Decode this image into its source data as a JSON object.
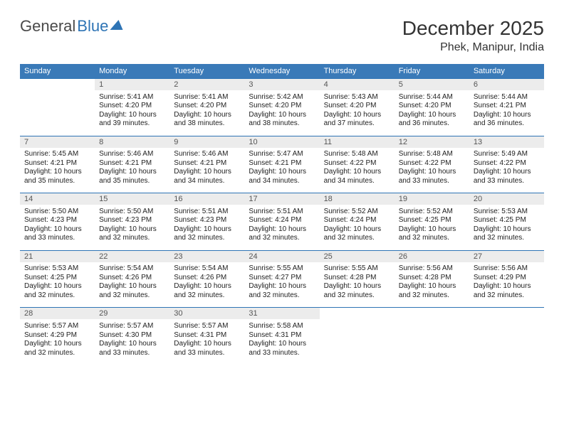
{
  "logo": {
    "text1": "General",
    "text2": "Blue"
  },
  "title": "December 2025",
  "location": "Phek, Manipur, India",
  "colors": {
    "header_bg": "#3a7ab8",
    "daynum_bg": "#ececec",
    "rule": "#2e74b5",
    "text": "#222222",
    "logo_gray": "#4a4a4a"
  },
  "fonts": {
    "title_pt": 28,
    "location_pt": 16,
    "dow_pt": 11,
    "cell_pt": 10
  },
  "daysOfWeek": [
    "Sunday",
    "Monday",
    "Tuesday",
    "Wednesday",
    "Thursday",
    "Friday",
    "Saturday"
  ],
  "weeks": [
    [
      null,
      {
        "n": "1",
        "sr": "5:41 AM",
        "ss": "4:20 PM",
        "dl": "10 hours and 39 minutes."
      },
      {
        "n": "2",
        "sr": "5:41 AM",
        "ss": "4:20 PM",
        "dl": "10 hours and 38 minutes."
      },
      {
        "n": "3",
        "sr": "5:42 AM",
        "ss": "4:20 PM",
        "dl": "10 hours and 38 minutes."
      },
      {
        "n": "4",
        "sr": "5:43 AM",
        "ss": "4:20 PM",
        "dl": "10 hours and 37 minutes."
      },
      {
        "n": "5",
        "sr": "5:44 AM",
        "ss": "4:20 PM",
        "dl": "10 hours and 36 minutes."
      },
      {
        "n": "6",
        "sr": "5:44 AM",
        "ss": "4:21 PM",
        "dl": "10 hours and 36 minutes."
      }
    ],
    [
      {
        "n": "7",
        "sr": "5:45 AM",
        "ss": "4:21 PM",
        "dl": "10 hours and 35 minutes."
      },
      {
        "n": "8",
        "sr": "5:46 AM",
        "ss": "4:21 PM",
        "dl": "10 hours and 35 minutes."
      },
      {
        "n": "9",
        "sr": "5:46 AM",
        "ss": "4:21 PM",
        "dl": "10 hours and 34 minutes."
      },
      {
        "n": "10",
        "sr": "5:47 AM",
        "ss": "4:21 PM",
        "dl": "10 hours and 34 minutes."
      },
      {
        "n": "11",
        "sr": "5:48 AM",
        "ss": "4:22 PM",
        "dl": "10 hours and 34 minutes."
      },
      {
        "n": "12",
        "sr": "5:48 AM",
        "ss": "4:22 PM",
        "dl": "10 hours and 33 minutes."
      },
      {
        "n": "13",
        "sr": "5:49 AM",
        "ss": "4:22 PM",
        "dl": "10 hours and 33 minutes."
      }
    ],
    [
      {
        "n": "14",
        "sr": "5:50 AM",
        "ss": "4:23 PM",
        "dl": "10 hours and 33 minutes."
      },
      {
        "n": "15",
        "sr": "5:50 AM",
        "ss": "4:23 PM",
        "dl": "10 hours and 32 minutes."
      },
      {
        "n": "16",
        "sr": "5:51 AM",
        "ss": "4:23 PM",
        "dl": "10 hours and 32 minutes."
      },
      {
        "n": "17",
        "sr": "5:51 AM",
        "ss": "4:24 PM",
        "dl": "10 hours and 32 minutes."
      },
      {
        "n": "18",
        "sr": "5:52 AM",
        "ss": "4:24 PM",
        "dl": "10 hours and 32 minutes."
      },
      {
        "n": "19",
        "sr": "5:52 AM",
        "ss": "4:25 PM",
        "dl": "10 hours and 32 minutes."
      },
      {
        "n": "20",
        "sr": "5:53 AM",
        "ss": "4:25 PM",
        "dl": "10 hours and 32 minutes."
      }
    ],
    [
      {
        "n": "21",
        "sr": "5:53 AM",
        "ss": "4:25 PM",
        "dl": "10 hours and 32 minutes."
      },
      {
        "n": "22",
        "sr": "5:54 AM",
        "ss": "4:26 PM",
        "dl": "10 hours and 32 minutes."
      },
      {
        "n": "23",
        "sr": "5:54 AM",
        "ss": "4:26 PM",
        "dl": "10 hours and 32 minutes."
      },
      {
        "n": "24",
        "sr": "5:55 AM",
        "ss": "4:27 PM",
        "dl": "10 hours and 32 minutes."
      },
      {
        "n": "25",
        "sr": "5:55 AM",
        "ss": "4:28 PM",
        "dl": "10 hours and 32 minutes."
      },
      {
        "n": "26",
        "sr": "5:56 AM",
        "ss": "4:28 PM",
        "dl": "10 hours and 32 minutes."
      },
      {
        "n": "27",
        "sr": "5:56 AM",
        "ss": "4:29 PM",
        "dl": "10 hours and 32 minutes."
      }
    ],
    [
      {
        "n": "28",
        "sr": "5:57 AM",
        "ss": "4:29 PM",
        "dl": "10 hours and 32 minutes."
      },
      {
        "n": "29",
        "sr": "5:57 AM",
        "ss": "4:30 PM",
        "dl": "10 hours and 33 minutes."
      },
      {
        "n": "30",
        "sr": "5:57 AM",
        "ss": "4:31 PM",
        "dl": "10 hours and 33 minutes."
      },
      {
        "n": "31",
        "sr": "5:58 AM",
        "ss": "4:31 PM",
        "dl": "10 hours and 33 minutes."
      },
      null,
      null,
      null
    ]
  ],
  "labels": {
    "sunrise": "Sunrise:",
    "sunset": "Sunset:",
    "daylight": "Daylight:"
  }
}
